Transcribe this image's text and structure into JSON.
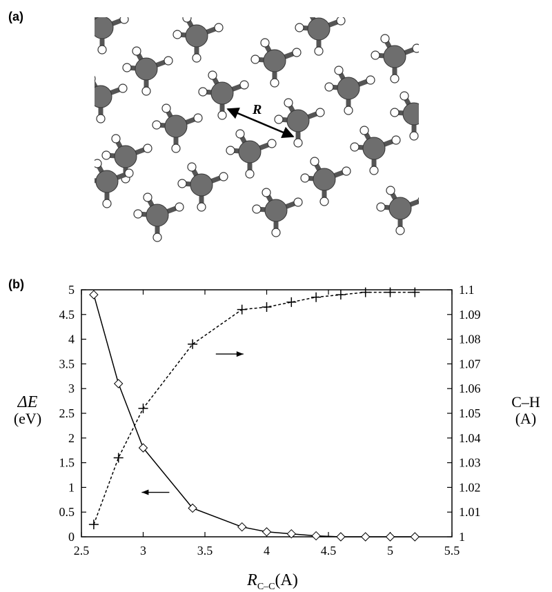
{
  "panel_a": {
    "label": "(a)",
    "distance_label": "R"
  },
  "panel_b": {
    "label": "(b)"
  },
  "chart_data": {
    "type": "line",
    "xlabel_main": "R",
    "xlabel_sub": "C–C",
    "xlabel_unit": "(A)",
    "ylabel_left_main": "ΔE",
    "ylabel_left_unit": "(eV)",
    "ylabel_right_main": "C–H",
    "ylabel_right_unit": "(A)",
    "xlim": [
      2.5,
      5.5
    ],
    "ylim_left": [
      0,
      5
    ],
    "ylim_right": [
      1.0,
      1.1
    ],
    "x_ticks": [
      "2.5",
      "3",
      "3.5",
      "4",
      "4.5",
      "5",
      "5.5"
    ],
    "y_left_ticks": [
      "0",
      "0.5",
      "1",
      "1.5",
      "2",
      "2.5",
      "3",
      "3.5",
      "4",
      "4.5",
      "5"
    ],
    "y_right_ticks": [
      "1",
      "1.01",
      "1.02",
      "1.03",
      "1.04",
      "1.05",
      "1.06",
      "1.07",
      "1.08",
      "1.09",
      "1.1"
    ],
    "grid": false,
    "series": [
      {
        "axis": "left",
        "marker": "diamond",
        "line": "solid",
        "x": [
          2.6,
          2.8,
          3.0,
          3.4,
          3.8,
          4.0,
          4.2,
          4.4,
          4.6,
          4.8,
          5.0,
          5.2
        ],
        "y": [
          4.9,
          3.1,
          1.8,
          0.58,
          0.2,
          0.1,
          0.06,
          0.02,
          0.0,
          0.0,
          0.0,
          0.0
        ]
      },
      {
        "axis": "right",
        "marker": "plus",
        "line": "dashed",
        "x": [
          2.6,
          2.8,
          3.0,
          3.4,
          3.8,
          4.0,
          4.2,
          4.4,
          4.6,
          4.8,
          5.0,
          5.2
        ],
        "y": [
          1.005,
          1.032,
          1.052,
          1.078,
          1.092,
          1.093,
          1.095,
          1.097,
          1.098,
          1.099,
          1.099,
          1.099
        ]
      }
    ],
    "annotations": [
      {
        "type": "arrow",
        "direction": "right",
        "at_x": 3.7,
        "at_y_left": 3.7
      },
      {
        "type": "arrow",
        "direction": "left",
        "at_x": 3.1,
        "at_y_left": 0.9
      }
    ]
  }
}
